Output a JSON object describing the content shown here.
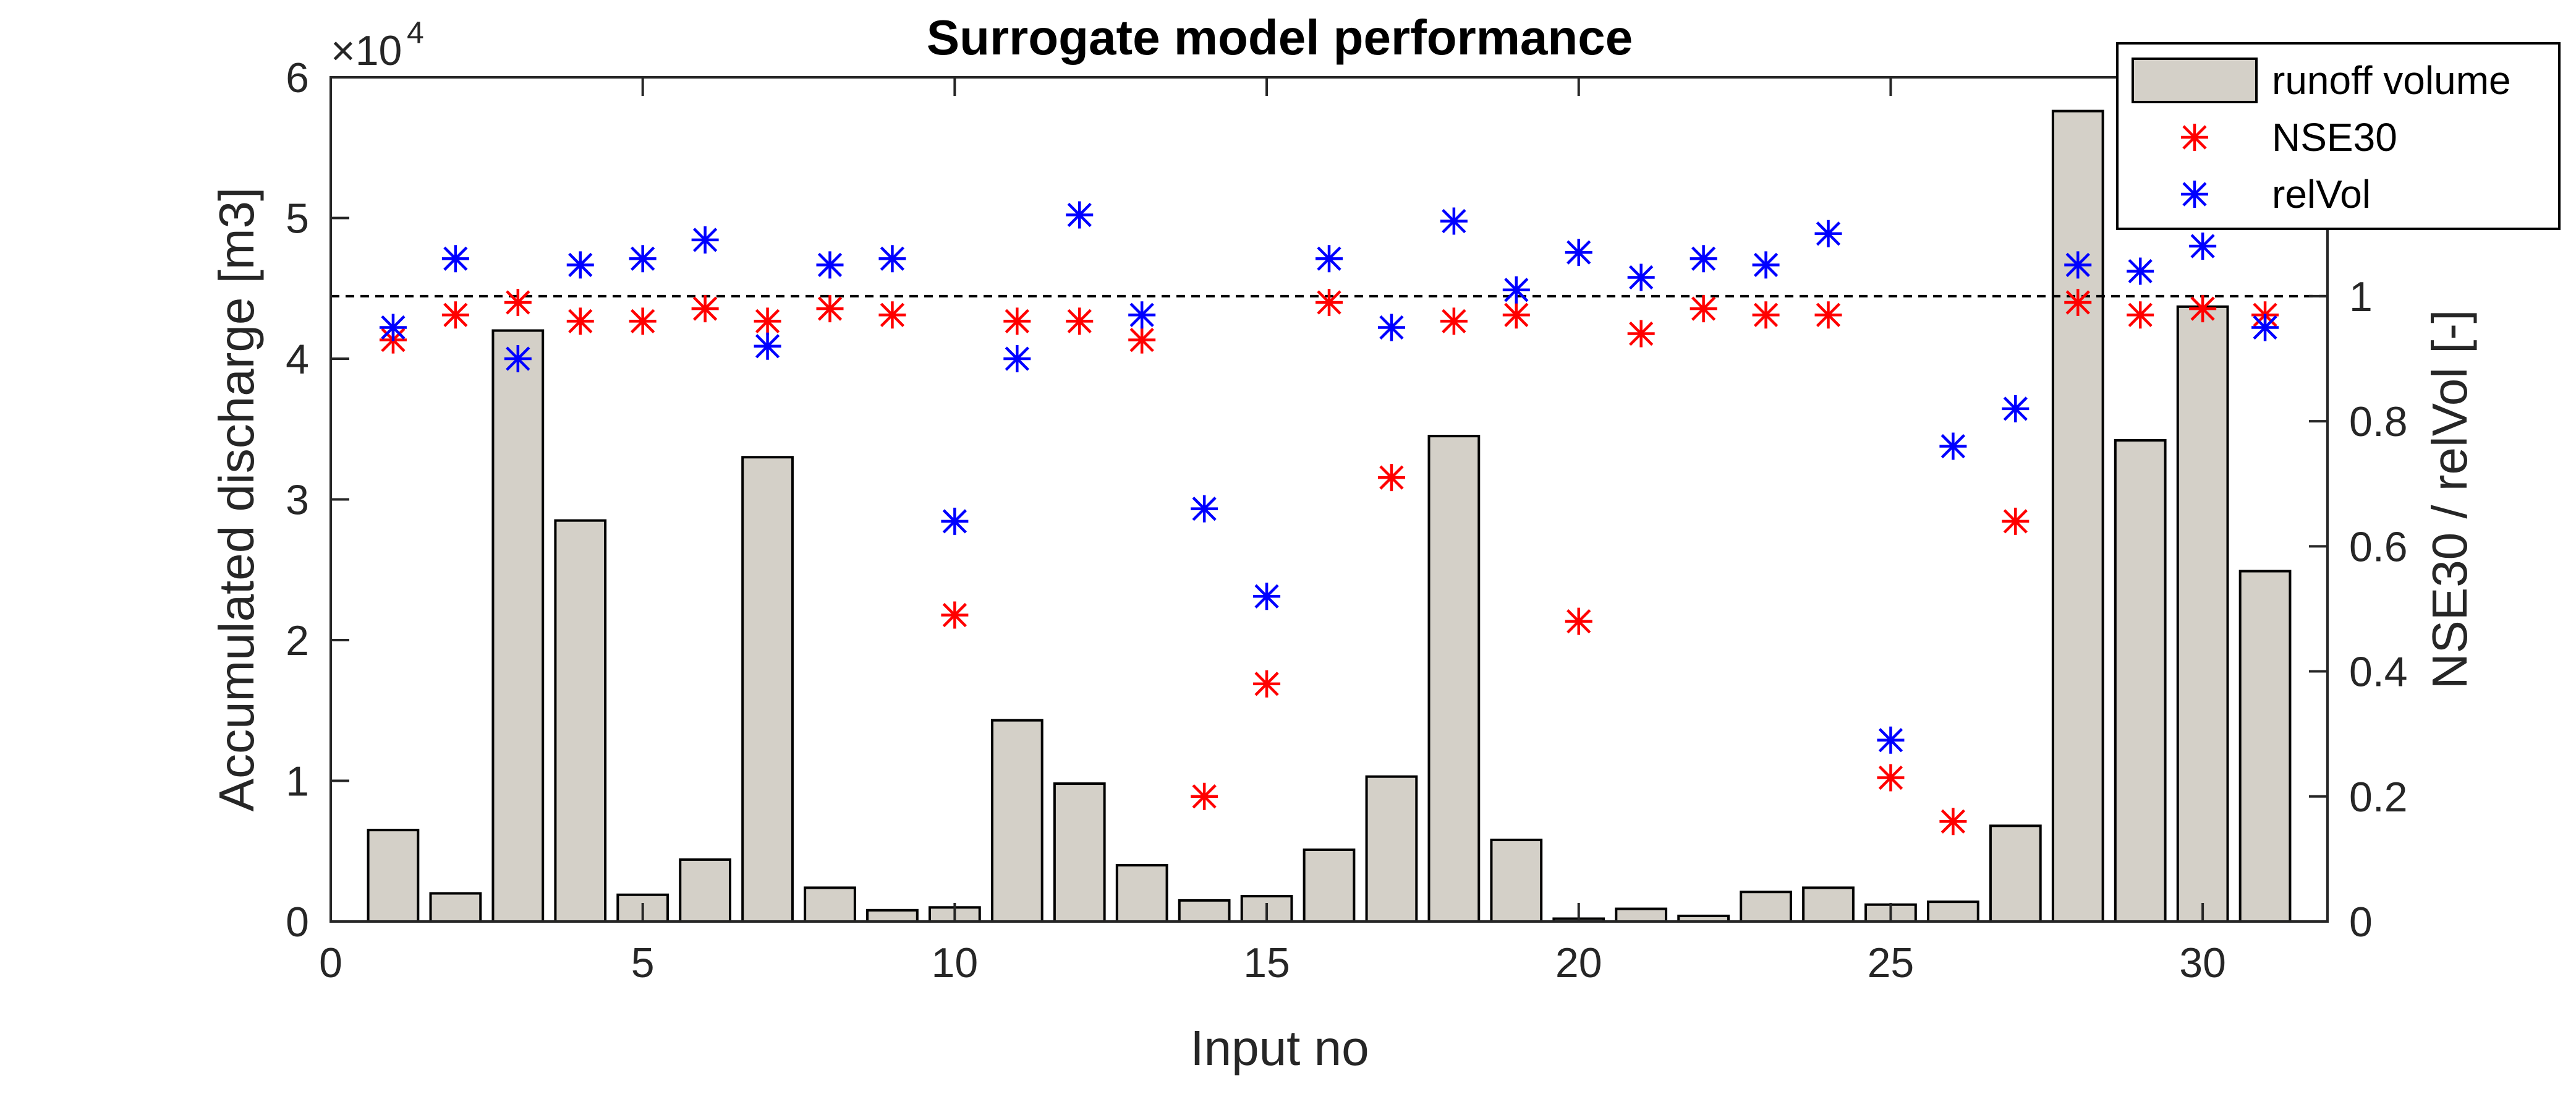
{
  "chart_data": {
    "type": "bar",
    "title": "Surrogate model performance",
    "xlabel": "Input no",
    "ylabel_left": "Accumulated discharge [m3]",
    "ylabel_right": "NSE30 / relVol [-]",
    "xlim": [
      0,
      32
    ],
    "ylim_left": [
      0,
      60000
    ],
    "ylim_right": [
      0,
      1.35
    ],
    "left_exponent": {
      "base": "×10",
      "power": "4"
    },
    "xticks": [
      0,
      5,
      10,
      15,
      20,
      25,
      30
    ],
    "yticks_left": [
      0,
      1,
      2,
      3,
      4,
      5,
      6
    ],
    "yticks_right": [
      0,
      0.2,
      0.4,
      0.6,
      0.8,
      1
    ],
    "reference_line_right": 1,
    "x": [
      1,
      2,
      3,
      4,
      5,
      6,
      7,
      8,
      9,
      10,
      11,
      12,
      13,
      14,
      15,
      16,
      17,
      18,
      19,
      20,
      21,
      22,
      23,
      24,
      25,
      26,
      27,
      28,
      29,
      30,
      31
    ],
    "series": [
      {
        "name": "runoff volume",
        "axis": "left",
        "kind": "bar",
        "color": "#d4d0c8",
        "values": [
          6500,
          2000,
          42000,
          28500,
          1900,
          4400,
          33000,
          2400,
          800,
          1000,
          14300,
          9800,
          4000,
          1500,
          1800,
          5100,
          10300,
          34500,
          5800,
          200,
          900,
          400,
          2100,
          2400,
          1200,
          1400,
          6800,
          57600,
          34200,
          43700,
          24900
        ]
      },
      {
        "name": "NSE30",
        "axis": "right",
        "kind": "marker",
        "color": "#ff0000",
        "values": [
          0.93,
          0.97,
          0.99,
          0.96,
          0.96,
          0.98,
          0.96,
          0.98,
          0.97,
          0.49,
          0.96,
          0.96,
          0.93,
          0.2,
          0.38,
          0.99,
          0.71,
          0.96,
          0.97,
          0.48,
          0.94,
          0.98,
          0.97,
          0.97,
          0.23,
          0.16,
          0.64,
          0.99,
          0.97,
          0.98,
          0.97
        ]
      },
      {
        "name": "relVol",
        "axis": "right",
        "kind": "marker",
        "color": "#0000ff",
        "values": [
          0.95,
          1.06,
          0.9,
          1.05,
          1.06,
          1.09,
          0.92,
          1.05,
          1.06,
          0.64,
          0.9,
          1.13,
          0.97,
          0.66,
          0.52,
          1.06,
          0.95,
          1.12,
          1.01,
          1.07,
          1.03,
          1.06,
          1.05,
          1.1,
          0.29,
          0.76,
          0.82,
          1.05,
          1.04,
          1.08,
          0.95
        ]
      }
    ],
    "legend_position": "top-right"
  }
}
